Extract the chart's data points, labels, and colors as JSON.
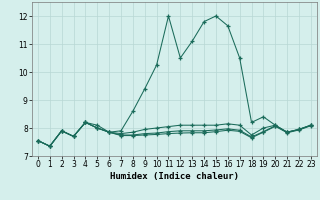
{
  "xlabel": "Humidex (Indice chaleur)",
  "ylabel": "",
  "xlim": [
    -0.5,
    23.5
  ],
  "ylim": [
    7.0,
    12.5
  ],
  "yticks": [
    7,
    8,
    9,
    10,
    11,
    12
  ],
  "xticks": [
    0,
    1,
    2,
    3,
    4,
    5,
    6,
    7,
    8,
    9,
    10,
    11,
    12,
    13,
    14,
    15,
    16,
    17,
    18,
    19,
    20,
    21,
    22,
    23
  ],
  "background_color": "#d5efec",
  "grid_color": "#b8d8d4",
  "line_color": "#1a6b5a",
  "lines": [
    [
      7.55,
      7.35,
      7.9,
      7.7,
      8.2,
      8.1,
      7.85,
      7.9,
      8.6,
      9.4,
      10.25,
      12.0,
      10.5,
      11.1,
      11.8,
      12.0,
      11.65,
      10.5,
      8.2,
      8.4,
      8.1,
      7.85,
      7.95,
      8.1
    ],
    [
      7.55,
      7.35,
      7.9,
      7.7,
      8.2,
      8.0,
      7.85,
      7.8,
      7.85,
      7.95,
      8.0,
      8.05,
      8.1,
      8.1,
      8.1,
      8.1,
      8.15,
      8.1,
      7.75,
      8.0,
      8.1,
      7.85,
      7.95,
      8.1
    ],
    [
      7.55,
      7.35,
      7.9,
      7.7,
      8.2,
      8.0,
      7.85,
      7.75,
      7.75,
      7.8,
      7.82,
      7.87,
      7.9,
      7.9,
      7.9,
      7.93,
      7.97,
      7.92,
      7.68,
      7.87,
      8.08,
      7.85,
      7.95,
      8.1
    ],
    [
      7.55,
      7.35,
      7.9,
      7.7,
      8.2,
      8.0,
      7.85,
      7.73,
      7.73,
      7.75,
      7.77,
      7.8,
      7.82,
      7.83,
      7.83,
      7.87,
      7.92,
      7.88,
      7.65,
      7.85,
      8.06,
      7.83,
      7.93,
      8.08
    ]
  ]
}
